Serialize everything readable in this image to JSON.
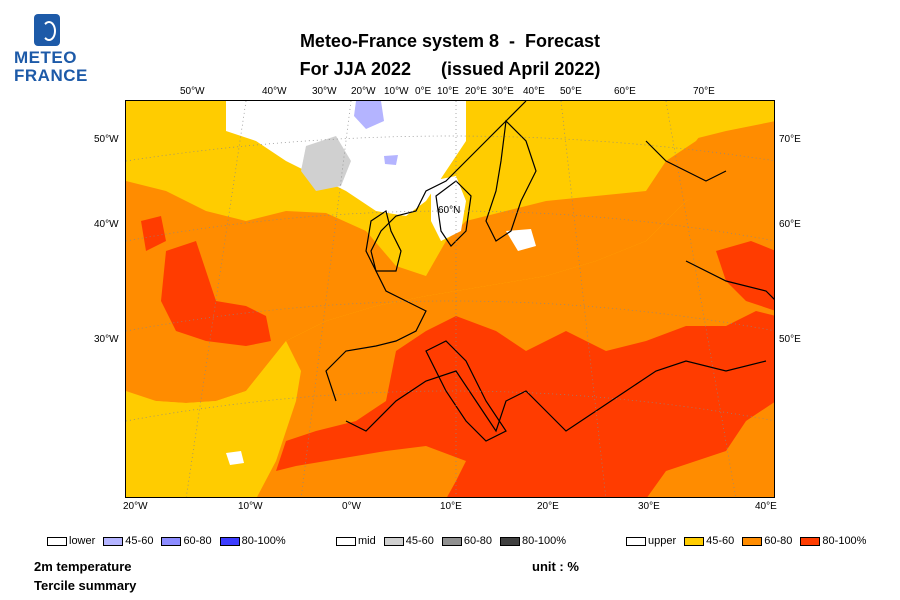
{
  "logo": {
    "line1": "METEO",
    "line2": "FRANCE"
  },
  "title": {
    "line1": "Meteo-France system 8  -  Forecast",
    "line2": "For JJA 2022      (issued April 2022)"
  },
  "map": {
    "top_lon_labels": [
      "50°W",
      "40°W",
      "30°W",
      "20°W",
      "10°W",
      "0°E",
      "10°E",
      "20°E",
      "30°E",
      "40°E",
      "50°E",
      "60°E",
      "70°E"
    ],
    "left_lon_labels": [
      "50°W",
      "40°W",
      "30°W"
    ],
    "right_lon_labels": [
      "70°E",
      "60°E",
      "50°E"
    ],
    "bottom_lat_labels": [
      "20°W",
      "10°W",
      "0°W",
      "10°E",
      "20°E",
      "30°E",
      "40°E"
    ],
    "inner_label": "60°N",
    "colors": {
      "upper_45_60": "#ffcc00",
      "upper_60_80": "#ff8c00",
      "upper_80_100": "#ff3c00",
      "mid_45_60": "#d0d0d0",
      "mid_60_80": "#909090",
      "mid_80_100": "#404040",
      "lower_45_60": "#b4b4ff",
      "lower_60_80": "#8c8cff",
      "lower_80_100": "#3c3cff",
      "white": "#ffffff",
      "border": "#000000"
    }
  },
  "legend": {
    "lower": [
      {
        "label": "lower",
        "color": "#ffffff"
      },
      {
        "label": "45-60",
        "color": "#b4b4ff"
      },
      {
        "label": "60-80",
        "color": "#8c8cff"
      },
      {
        "label": "80-100%",
        "color": "#3c3cff"
      }
    ],
    "mid": [
      {
        "label": "mid",
        "color": "#ffffff"
      },
      {
        "label": "45-60",
        "color": "#d0d0d0"
      },
      {
        "label": "60-80",
        "color": "#909090"
      },
      {
        "label": "80-100%",
        "color": "#404040"
      }
    ],
    "upper": [
      {
        "label": "upper",
        "color": "#ffffff"
      },
      {
        "label": "45-60",
        "color": "#ffcc00"
      },
      {
        "label": "60-80",
        "color": "#ff8c00"
      },
      {
        "label": "80-100%",
        "color": "#ff3c00"
      }
    ]
  },
  "footer": {
    "variable": "2m temperature",
    "summary": "Tercile summary",
    "unit": "unit : %"
  }
}
